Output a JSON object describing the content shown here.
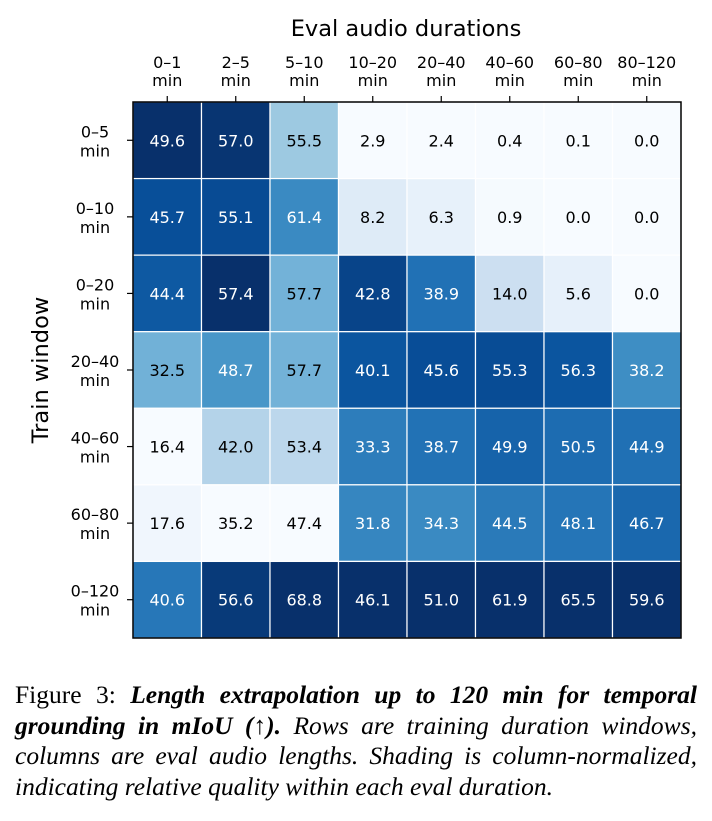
{
  "chart_data": {
    "type": "heatmap",
    "title": "Eval audio durations",
    "ylabel": "Train window",
    "columns": [
      [
        "0–1",
        "min"
      ],
      [
        "2–5",
        "min"
      ],
      [
        "5–10",
        "min"
      ],
      [
        "10–20",
        "min"
      ],
      [
        "20–40",
        "min"
      ],
      [
        "40–60",
        "min"
      ],
      [
        "60–80",
        "min"
      ],
      [
        "80–120",
        "min"
      ]
    ],
    "rows": [
      [
        "0–5",
        "min"
      ],
      [
        "0–10",
        "min"
      ],
      [
        "0–20",
        "min"
      ],
      [
        "20–40",
        "min"
      ],
      [
        "40–60",
        "min"
      ],
      [
        "60–80",
        "min"
      ],
      [
        "0–120",
        "min"
      ]
    ],
    "values": [
      [
        "49.6",
        "57.0",
        "55.5",
        "2.9",
        "2.4",
        "0.4",
        "0.1",
        "0.0"
      ],
      [
        "45.7",
        "55.1",
        "61.4",
        "8.2",
        "6.3",
        "0.9",
        "0.0",
        "0.0"
      ],
      [
        "44.4",
        "57.4",
        "57.7",
        "42.8",
        "38.9",
        "14.0",
        "5.6",
        "0.0"
      ],
      [
        "32.5",
        "48.7",
        "57.7",
        "40.1",
        "45.6",
        "55.3",
        "56.3",
        "38.2"
      ],
      [
        "16.4",
        "42.0",
        "53.4",
        "33.3",
        "38.7",
        "49.9",
        "50.5",
        "44.9"
      ],
      [
        "17.6",
        "35.2",
        "47.4",
        "31.8",
        "34.3",
        "44.5",
        "48.1",
        "46.7"
      ],
      [
        "40.6",
        "56.6",
        "68.8",
        "46.1",
        "51.0",
        "61.9",
        "65.5",
        "59.6"
      ]
    ],
    "shading": "column-normalized",
    "colormap": [
      "#f7fbff",
      "#deebf7",
      "#c6dbef",
      "#9ecae1",
      "#6baed6",
      "#4292c6",
      "#2171b5",
      "#08519c",
      "#08306b"
    ]
  },
  "caption": {
    "lead": "Figure 3: ",
    "bold": "Length extrapolation up to 120 min for temporal grounding in mIoU (↑).",
    "rest": " Rows are training duration windows, columns are eval audio lengths. Shading is column-normalized, indicating relative quality within each eval duration."
  }
}
